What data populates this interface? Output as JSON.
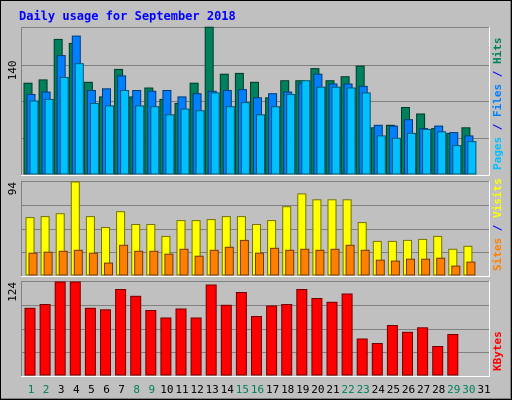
{
  "chart_data": {
    "type": "bar",
    "title": "Daily usage for September 2018",
    "categories": [
      "1",
      "2",
      "3",
      "4",
      "5",
      "6",
      "7",
      "8",
      "9",
      "10",
      "11",
      "12",
      "13",
      "14",
      "15",
      "16",
      "17",
      "18",
      "19",
      "20",
      "21",
      "22",
      "23",
      "24",
      "25",
      "26",
      "27",
      "28",
      "29",
      "30",
      "31"
    ],
    "weekend_days": [
      1,
      2,
      8,
      9,
      15,
      16,
      22,
      23,
      29,
      30
    ],
    "panels": [
      {
        "id": "hits-files-pages",
        "y_tick_label": "140",
        "y_tick_value": 140,
        "ylim": [
          0,
          180
        ],
        "legend": [
          {
            "text": "Pages",
            "color": "#00c0ff"
          },
          {
            "text": " / ",
            "color": "#0000ff"
          },
          {
            "text": "Files",
            "color": "#0080ff"
          },
          {
            "text": " / ",
            "color": "#0000ff"
          },
          {
            "text": "Hits",
            "color": "#00805c"
          }
        ],
        "series": [
          {
            "name": "Hits",
            "color": "#00805c",
            "values": [
              112,
              116,
              166,
              161,
              113,
              95,
              129,
              95,
              106,
              92,
              87,
              112,
              181,
              123,
              124,
              113,
              94,
              115,
              115,
              130,
              115,
              120,
              133,
              57,
              60,
              82,
              74,
              56,
              50,
              57,
              0
            ]
          },
          {
            "name": "Files",
            "color": "#0080ff",
            "values": [
              98,
              101,
              146,
              170,
              103,
              105,
              121,
              103,
              102,
              103,
              95,
              99,
              102,
              103,
              104,
              94,
              99,
              101,
              112,
              123,
              111,
              111,
              108,
              60,
              59,
              67,
              56,
              59,
              51,
              47,
              0
            ]
          },
          {
            "name": "Pages",
            "color": "#00c0ff",
            "values": [
              90,
              92,
              119,
              136,
              87,
              84,
              103,
              84,
              83,
              73,
              80,
              78,
              100,
              83,
              88,
              73,
              83,
              98,
              115,
              107,
              107,
              106,
              100,
              47,
              44,
              50,
              55,
              52,
              35,
              40,
              0
            ]
          }
        ]
      },
      {
        "id": "visits-sites",
        "y_tick_label": "94",
        "y_tick_value": 94,
        "ylim": [
          0,
          94
        ],
        "legend": [
          {
            "text": "Sites",
            "color": "#ff8000"
          },
          {
            "text": " / ",
            "color": "#0000ff"
          },
          {
            "text": "Visits",
            "color": "#ffff00"
          }
        ],
        "series": [
          {
            "name": "Visits",
            "color": "#ffff00",
            "values": [
              58,
              59,
              62,
              94,
              59,
              48,
              64,
              51,
              51,
              39,
              55,
              55,
              56,
              59,
              59,
              51,
              55,
              69,
              82,
              76,
              76,
              76,
              53,
              34,
              34,
              35,
              36,
              39,
              26,
              29,
              0
            ]
          },
          {
            "name": "Sites",
            "color": "#ff8000",
            "values": [
              22,
              23,
              24,
              25,
              22,
              12,
              30,
              24,
              24,
              21,
              26,
              19,
              25,
              28,
              35,
              22,
              27,
              25,
              26,
              25,
              26,
              30,
              25,
              15,
              14,
              16,
              16,
              17,
              9,
              13,
              0
            ]
          }
        ]
      },
      {
        "id": "kbytes",
        "y_tick_label": "124",
        "y_tick_value": 124,
        "ylim": [
          0,
          124
        ],
        "legend": [
          {
            "text": "KBytes",
            "color": "#ff0000"
          }
        ],
        "series": [
          {
            "name": "KBytes",
            "color": "#ff0000",
            "values": [
              89,
              94,
              124,
              124,
              89,
              87,
              114,
              105,
              86,
              76,
              88,
              76,
              120,
              93,
              110,
              78,
              92,
              94,
              114,
              102,
              97,
              108,
              48,
              42,
              66,
              57,
              63,
              38,
              54,
              0,
              0
            ]
          }
        ]
      }
    ]
  }
}
